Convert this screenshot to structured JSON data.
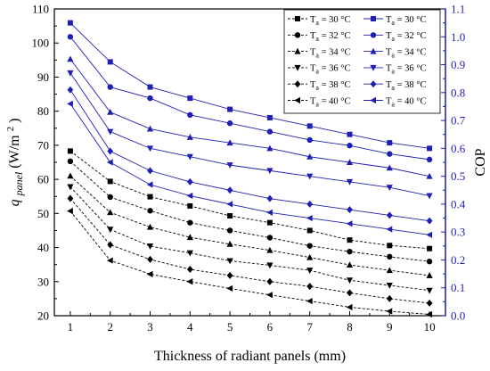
{
  "chart_data": {
    "type": "line",
    "x": [
      1,
      2,
      3,
      4,
      5,
      6,
      7,
      8,
      9,
      10
    ],
    "xlabel": "Thickness of radiant panels (mm)",
    "ylabel_left": {
      "symbol": "q",
      "subscript": "panel",
      "unit_open": " (W/m",
      "unit_sup": "2",
      "unit_close": ")"
    },
    "ylabel_right": "COP",
    "xlim": [
      0.6,
      10.4
    ],
    "ylim_left": [
      20,
      110
    ],
    "ylim_right": [
      0.0,
      1.1
    ],
    "x_ticks": [
      1,
      2,
      3,
      4,
      5,
      6,
      7,
      8,
      9,
      10
    ],
    "y_left_ticks": [
      20,
      30,
      40,
      50,
      60,
      70,
      80,
      90,
      100,
      110
    ],
    "y_right_ticks": [
      "0.0",
      "0.1",
      "0.2",
      "0.3",
      "0.4",
      "0.5",
      "0.6",
      "0.7",
      "0.8",
      "0.9",
      "1.0",
      "1.1"
    ],
    "grid": false,
    "legend_position": "top-right",
    "series": [
      {
        "name": "Ta = 30 °C",
        "label_prefix": "T",
        "label_sub": "a",
        "label_suffix": " = 30 °C",
        "axis": "left",
        "color": "#000000",
        "dash": true,
        "marker": "square",
        "values": [
          68.3,
          59.4,
          54.9,
          52.2,
          49.3,
          47.3,
          45.0,
          42.2,
          40.6,
          39.7
        ]
      },
      {
        "name": "Ta = 32 °C",
        "label_prefix": "T",
        "label_sub": "a",
        "label_suffix": " = 32 °C",
        "axis": "left",
        "color": "#000000",
        "dash": true,
        "marker": "circle",
        "values": [
          65.3,
          54.8,
          50.8,
          47.3,
          45.0,
          42.9,
          40.5,
          38.8,
          37.3,
          35.9
        ]
      },
      {
        "name": "Ta = 34 °C",
        "label_prefix": "T",
        "label_sub": "a",
        "label_suffix": " = 34 °C",
        "axis": "left",
        "color": "#000000",
        "dash": true,
        "marker": "triangle-up",
        "values": [
          61.0,
          50.3,
          46.0,
          43.0,
          41.0,
          39.2,
          37.1,
          34.9,
          33.3,
          31.8
        ]
      },
      {
        "name": "Ta = 36 °C",
        "label_prefix": "T",
        "label_sub": "a",
        "label_suffix": " = 36 °C",
        "axis": "left",
        "color": "#000000",
        "dash": true,
        "marker": "triangle-down",
        "values": [
          57.8,
          45.3,
          40.4,
          38.4,
          36.1,
          34.8,
          33.3,
          30.4,
          28.9,
          27.4
        ]
      },
      {
        "name": "Ta = 38 °C",
        "label_prefix": "T",
        "label_sub": "a",
        "label_suffix": " = 38 °C",
        "axis": "left",
        "color": "#000000",
        "dash": true,
        "marker": "diamond",
        "values": [
          54.4,
          40.8,
          36.5,
          33.6,
          31.8,
          30.0,
          28.6,
          26.7,
          25.0,
          23.7
        ]
      },
      {
        "name": "Ta = 40 °C",
        "label_prefix": "T",
        "label_sub": "a",
        "label_suffix": " = 40 °C",
        "axis": "left",
        "color": "#000000",
        "dash": true,
        "marker": "triangle-left",
        "values": [
          50.7,
          36.2,
          32.2,
          30.0,
          28.0,
          26.1,
          24.3,
          22.5,
          21.3,
          20.4
        ]
      },
      {
        "name": "Ta = 30 °C",
        "label_prefix": "T",
        "label_sub": "a",
        "label_suffix": " = 30 °C",
        "axis": "right",
        "color": "#1f1fb4",
        "dash": false,
        "marker": "square",
        "values": [
          1.05,
          0.91,
          0.82,
          0.78,
          0.74,
          0.71,
          0.68,
          0.65,
          0.62,
          0.6
        ]
      },
      {
        "name": "Ta = 32 °C",
        "label_prefix": "T",
        "label_sub": "a",
        "label_suffix": " = 32 °C",
        "axis": "right",
        "color": "#1f1fb4",
        "dash": false,
        "marker": "circle",
        "values": [
          1.0,
          0.82,
          0.78,
          0.72,
          0.69,
          0.66,
          0.63,
          0.61,
          0.58,
          0.56
        ]
      },
      {
        "name": "Ta = 34 °C",
        "label_prefix": "T",
        "label_sub": "a",
        "label_suffix": " = 34 °C",
        "axis": "right",
        "color": "#1f1fb4",
        "dash": false,
        "marker": "triangle-up",
        "values": [
          0.92,
          0.73,
          0.67,
          0.64,
          0.62,
          0.6,
          0.57,
          0.55,
          0.53,
          0.5
        ]
      },
      {
        "name": "Ta = 36 °C",
        "label_prefix": "T",
        "label_sub": "a",
        "label_suffix": " = 36 °C",
        "axis": "right",
        "color": "#1f1fb4",
        "dash": false,
        "marker": "triangle-down",
        "values": [
          0.87,
          0.66,
          0.6,
          0.57,
          0.54,
          0.52,
          0.5,
          0.48,
          0.46,
          0.43
        ]
      },
      {
        "name": "Ta = 38 °C",
        "label_prefix": "T",
        "label_sub": "a",
        "label_suffix": " = 38 °C",
        "axis": "right",
        "color": "#1f1fb4",
        "dash": false,
        "marker": "diamond",
        "values": [
          0.81,
          0.59,
          0.52,
          0.48,
          0.45,
          0.42,
          0.4,
          0.38,
          0.36,
          0.34
        ]
      },
      {
        "name": "Ta = 40 °C",
        "label_prefix": "T",
        "label_sub": "a",
        "label_suffix": " = 40 °C",
        "axis": "right",
        "color": "#1f1fb4",
        "dash": false,
        "marker": "triangle-left",
        "values": [
          0.76,
          0.55,
          0.47,
          0.43,
          0.4,
          0.37,
          0.35,
          0.33,
          0.31,
          0.29
        ]
      }
    ]
  }
}
